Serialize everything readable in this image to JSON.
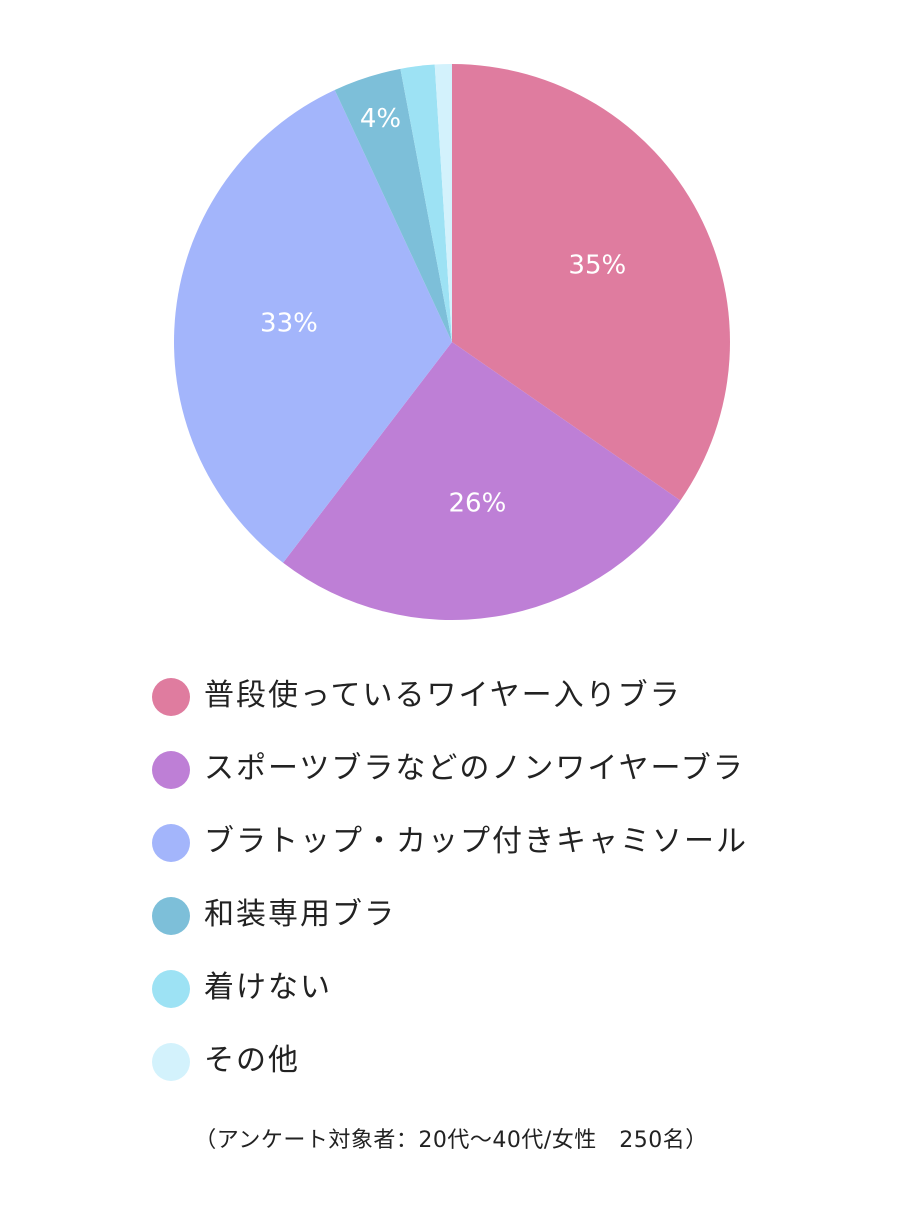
{
  "chart_data": {
    "type": "pie",
    "unit": "%",
    "categories": [
      "普段使っているワイヤー入りブラ",
      "スポーツブラなどのノンワイヤーブラ",
      "ブラトップ・カップ付きキャミソール",
      "和装専用ブラ",
      "着けない",
      "その他"
    ],
    "values": [
      35,
      26,
      33,
      4,
      2,
      1
    ],
    "data_labels": [
      "35%",
      "26%",
      "33%",
      "4%",
      "",
      ""
    ],
    "colors": [
      "#DF7C9F",
      "#BE7FD6",
      "#A3B5FB",
      "#7DBFD9",
      "#9DE2F4",
      "#D3F2FC"
    ],
    "legend": "bottom",
    "note": "（アンケート対象者：20代〜40代/女性　250名）"
  }
}
